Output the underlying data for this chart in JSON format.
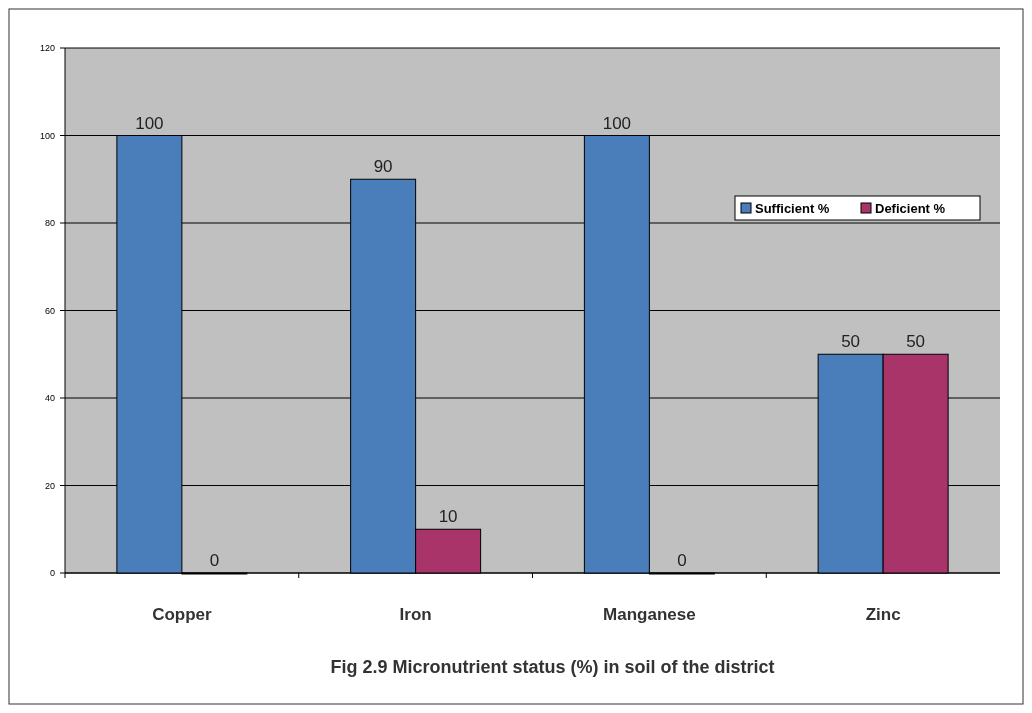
{
  "chart_data": {
    "type": "bar",
    "title": "Fig 2.9 Micronutrient status (%) in soil of the district",
    "categories": [
      "Copper",
      "Iron",
      "Manganese",
      "Zinc"
    ],
    "series": [
      {
        "name": "Sufficient %",
        "color": "#4a7ebb",
        "values": [
          100,
          90,
          100,
          50
        ]
      },
      {
        "name": "Deficient %",
        "color": "#a8346a",
        "values": [
          0,
          10,
          0,
          50
        ]
      }
    ],
    "ylim": [
      0,
      120
    ],
    "yticks": [
      0,
      20,
      40,
      60,
      80,
      100,
      120
    ],
    "grid": "y",
    "legend": "top right",
    "data_labels": true
  }
}
